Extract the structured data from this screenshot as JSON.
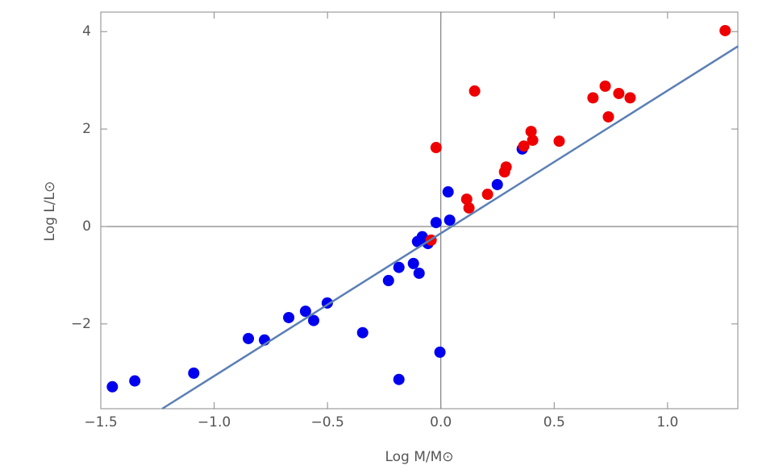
{
  "chart_data": {
    "type": "scatter",
    "xlabel": "Log M/M⊙",
    "ylabel": "Log L/L⊙",
    "xlim": [
      -1.5,
      1.31
    ],
    "ylim": [
      -3.74,
      4.4
    ],
    "xticks": [
      {
        "value": -1.5,
        "label": "−1.5"
      },
      {
        "value": -1.0,
        "label": "−1.0"
      },
      {
        "value": -0.5,
        "label": "−0.5"
      },
      {
        "value": 0,
        "label": "0.0"
      },
      {
        "value": 0.5,
        "label": "0.5"
      },
      {
        "value": 1.0,
        "label": "1.0"
      }
    ],
    "yticks": [
      {
        "value": -2,
        "label": "−2"
      },
      0,
      2,
      4
    ],
    "axes_through_origin": true,
    "series": [
      {
        "color": "#0000ee",
        "x": [
          -1.449,
          -1.35,
          -1.09,
          -0.849,
          -0.778,
          -0.671,
          -0.597,
          -0.561,
          -0.501,
          -0.345,
          -0.231,
          -0.185,
          -0.185,
          -0.121,
          -0.096,
          -0.103,
          -0.082,
          -0.057,
          -0.021,
          -0.004,
          0.032,
          0.039,
          0.249,
          0.359
        ],
        "y": [
          -3.29,
          -3.17,
          -3.01,
          -2.3,
          -2.33,
          -1.87,
          -1.74,
          -1.93,
          -1.57,
          -2.18,
          -1.11,
          -0.84,
          -3.14,
          -0.76,
          -0.96,
          -0.31,
          -0.21,
          -0.35,
          0.08,
          -2.58,
          0.71,
          0.13,
          0.86,
          1.59
        ]
      },
      {
        "color": "#ee0000",
        "x": [
          -0.043,
          -0.021,
          0.114,
          0.124,
          0.149,
          0.206,
          0.281,
          0.288,
          0.366,
          0.398,
          0.405,
          0.522,
          0.671,
          0.725,
          0.739,
          0.785,
          0.835,
          1.254
        ],
        "y": [
          -0.28,
          1.62,
          0.56,
          0.38,
          2.78,
          0.66,
          1.12,
          1.22,
          1.65,
          1.95,
          1.77,
          1.75,
          2.64,
          2.88,
          2.25,
          2.73,
          2.64,
          4.02
        ]
      }
    ],
    "fit_line": {
      "color": "#5b7fb5",
      "x": [
        -1.229,
        1.311
      ],
      "y": [
        -3.74,
        3.7
      ]
    }
  }
}
